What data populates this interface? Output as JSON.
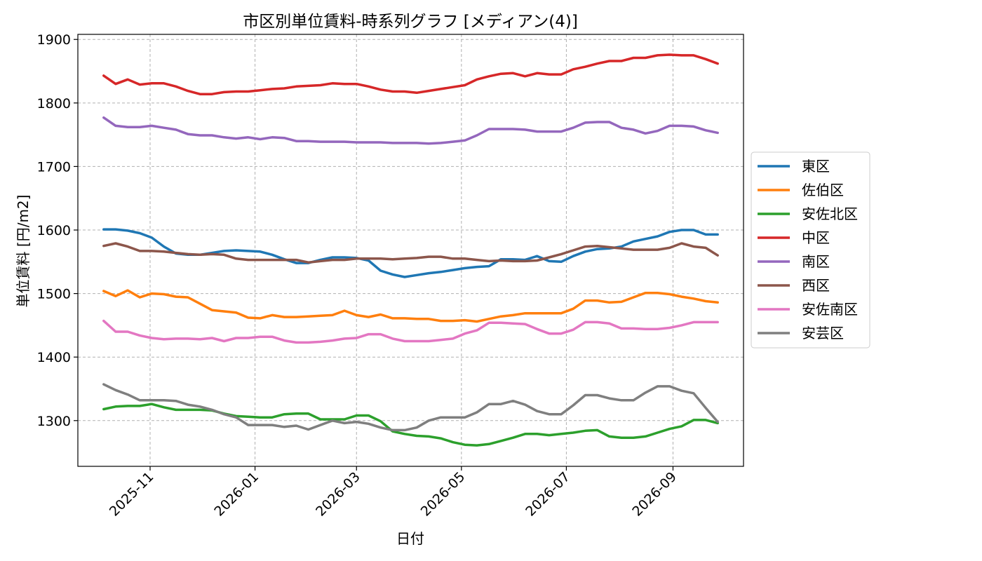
{
  "chart_data": {
    "type": "line",
    "title": "市区別単位賃料-時系列グラフ [メディアン(4)]",
    "xlabel": "日付",
    "ylabel": "単位賃料 [円/m2]",
    "ylim": [
      1228,
      1908
    ],
    "xlim": [
      "2025-09-20",
      "2026-10-12"
    ],
    "yticks": [
      1300,
      1400,
      1500,
      1600,
      1700,
      1800,
      1900
    ],
    "xticks": [
      "2025-11-01",
      "2026-01-01",
      "2026-03-01",
      "2026-05-01",
      "2026-07-01",
      "2026-09-01"
    ],
    "xtick_labels": [
      "2025-11",
      "2026-01",
      "2026-03",
      "2026-05",
      "2026-07",
      "2026-09"
    ],
    "grid": true,
    "legend_position": "center-right-outside",
    "x_start": "2025-10-05",
    "x_step_days": 7,
    "series": [
      {
        "name": "東区",
        "color": "#1f77b4",
        "values": [
          1601,
          1601,
          1599,
          1595,
          1588,
          1574,
          1563,
          1561,
          1561,
          1564,
          1567,
          1568,
          1567,
          1566,
          1561,
          1554,
          1548,
          1548,
          1553,
          1557,
          1557,
          1556,
          1552,
          1536,
          1530,
          1526,
          1529,
          1532,
          1534,
          1537,
          1540,
          1542,
          1543,
          1554,
          1554,
          1553,
          1559,
          1551,
          1550,
          1559,
          1566,
          1570,
          1571,
          1574,
          1582,
          1586,
          1590,
          1597,
          1600,
          1600,
          1593,
          1593
        ]
      },
      {
        "name": "佐伯区",
        "color": "#ff7f0e",
        "values": [
          1504,
          1496,
          1505,
          1494,
          1500,
          1499,
          1495,
          1494,
          1484,
          1474,
          1472,
          1470,
          1462,
          1461,
          1466,
          1463,
          1463,
          1464,
          1465,
          1466,
          1473,
          1466,
          1463,
          1467,
          1461,
          1461,
          1460,
          1460,
          1457,
          1457,
          1458,
          1456,
          1460,
          1464,
          1466,
          1469,
          1469,
          1469,
          1469,
          1476,
          1489,
          1489,
          1486,
          1487,
          1494,
          1501,
          1501,
          1499,
          1495,
          1492,
          1488,
          1486
        ]
      },
      {
        "name": "安佐北区",
        "color": "#2ca02c",
        "values": [
          1318,
          1322,
          1323,
          1323,
          1326,
          1321,
          1317,
          1317,
          1317,
          1316,
          1311,
          1307,
          1306,
          1305,
          1305,
          1310,
          1311,
          1311,
          1302,
          1302,
          1302,
          1308,
          1308,
          1299,
          1283,
          1279,
          1276,
          1275,
          1272,
          1266,
          1262,
          1261,
          1263,
          1268,
          1273,
          1279,
          1279,
          1277,
          1279,
          1281,
          1284,
          1285,
          1275,
          1273,
          1273,
          1275,
          1281,
          1287,
          1291,
          1301,
          1301,
          1296
        ]
      },
      {
        "name": "中区",
        "color": "#d62728",
        "values": [
          1843,
          1830,
          1837,
          1829,
          1831,
          1831,
          1826,
          1819,
          1814,
          1814,
          1817,
          1818,
          1818,
          1820,
          1822,
          1823,
          1826,
          1827,
          1828,
          1831,
          1830,
          1830,
          1826,
          1821,
          1818,
          1818,
          1816,
          1819,
          1822,
          1825,
          1828,
          1837,
          1842,
          1846,
          1847,
          1842,
          1847,
          1845,
          1845,
          1853,
          1857,
          1862,
          1866,
          1866,
          1871,
          1871,
          1875,
          1876,
          1875,
          1875,
          1869,
          1862
        ]
      },
      {
        "name": "南区",
        "color": "#9467bd",
        "values": [
          1777,
          1764,
          1762,
          1762,
          1764,
          1761,
          1758,
          1751,
          1749,
          1749,
          1746,
          1744,
          1746,
          1743,
          1746,
          1745,
          1740,
          1740,
          1739,
          1739,
          1739,
          1738,
          1738,
          1738,
          1737,
          1737,
          1737,
          1736,
          1737,
          1739,
          1741,
          1749,
          1759,
          1759,
          1759,
          1758,
          1755,
          1755,
          1755,
          1761,
          1769,
          1770,
          1770,
          1761,
          1758,
          1752,
          1756,
          1764,
          1764,
          1763,
          1757,
          1753
        ]
      },
      {
        "name": "西区",
        "color": "#8c564b",
        "values": [
          1575,
          1579,
          1574,
          1567,
          1567,
          1566,
          1564,
          1562,
          1561,
          1562,
          1561,
          1555,
          1553,
          1553,
          1553,
          1553,
          1553,
          1549,
          1551,
          1553,
          1553,
          1555,
          1555,
          1555,
          1554,
          1555,
          1556,
          1558,
          1558,
          1555,
          1555,
          1553,
          1551,
          1552,
          1551,
          1551,
          1552,
          1557,
          1562,
          1568,
          1574,
          1575,
          1573,
          1571,
          1569,
          1569,
          1569,
          1572,
          1579,
          1574,
          1572,
          1560
        ]
      },
      {
        "name": "安佐南区",
        "color": "#e377c2",
        "values": [
          1457,
          1440,
          1440,
          1434,
          1430,
          1428,
          1429,
          1429,
          1428,
          1430,
          1425,
          1430,
          1430,
          1432,
          1432,
          1426,
          1423,
          1423,
          1424,
          1426,
          1429,
          1430,
          1436,
          1436,
          1429,
          1425,
          1425,
          1425,
          1427,
          1429,
          1437,
          1442,
          1454,
          1454,
          1453,
          1452,
          1444,
          1437,
          1437,
          1443,
          1455,
          1455,
          1453,
          1445,
          1445,
          1444,
          1444,
          1446,
          1450,
          1455,
          1455,
          1455
        ]
      },
      {
        "name": "安芸区",
        "color": "#7f7f7f",
        "values": [
          1357,
          1348,
          1341,
          1332,
          1332,
          1332,
          1331,
          1325,
          1322,
          1317,
          1310,
          1305,
          1293,
          1293,
          1293,
          1290,
          1292,
          1286,
          1293,
          1300,
          1296,
          1298,
          1295,
          1289,
          1285,
          1285,
          1289,
          1300,
          1305,
          1305,
          1305,
          1313,
          1326,
          1326,
          1331,
          1325,
          1315,
          1310,
          1310,
          1324,
          1340,
          1340,
          1335,
          1332,
          1332,
          1344,
          1354,
          1354,
          1347,
          1343,
          1320,
          1298
        ]
      }
    ]
  }
}
